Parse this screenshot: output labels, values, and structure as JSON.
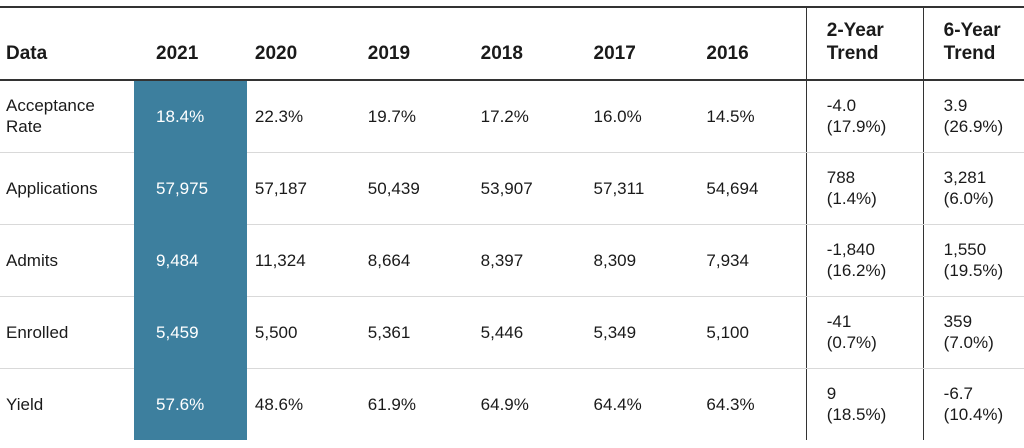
{
  "chart_data": {
    "type": "table",
    "columns": [
      "Data",
      "2021",
      "2020",
      "2019",
      "2018",
      "2017",
      "2016",
      "2-Year Trend",
      "6-Year Trend"
    ],
    "rows": [
      {
        "label": "Acceptance Rate",
        "values": [
          "18.4%",
          "22.3%",
          "19.7%",
          "17.2%",
          "16.0%",
          "14.5%"
        ],
        "trend2": [
          "-4.0",
          "(17.9%)"
        ],
        "trend6": [
          "3.9",
          "(26.9%)"
        ]
      },
      {
        "label": "Applications",
        "values": [
          "57,975",
          "57,187",
          "50,439",
          "53,907",
          "57,311",
          "54,694"
        ],
        "trend2": [
          "788",
          "(1.4%)"
        ],
        "trend6": [
          "3,281",
          "(6.0%)"
        ]
      },
      {
        "label": "Admits",
        "values": [
          "9,484",
          "11,324",
          "8,664",
          "8,397",
          "8,309",
          "7,934"
        ],
        "trend2": [
          "-1,840",
          "(16.2%)"
        ],
        "trend6": [
          "1,550",
          "(19.5%)"
        ]
      },
      {
        "label": "Enrolled",
        "values": [
          "5,459",
          "5,500",
          "5,361",
          "5,446",
          "5,349",
          "5,100"
        ],
        "trend2": [
          "-41",
          "(0.7%)"
        ],
        "trend6": [
          "359",
          "(7.0%)"
        ]
      },
      {
        "label": "Yield",
        "values": [
          "57.6%",
          "48.6%",
          "61.9%",
          "64.9%",
          "64.4%",
          "64.3%"
        ],
        "trend2": [
          "9",
          "(18.5%)"
        ],
        "trend6": [
          "-6.7",
          "(10.4%)"
        ]
      }
    ],
    "highlight_column": "2021",
    "colors": {
      "highlight": "#3d7f9e",
      "highlight_text": "#ffffff",
      "rule": "#333333",
      "row_divider": "#d9d9d9"
    }
  }
}
